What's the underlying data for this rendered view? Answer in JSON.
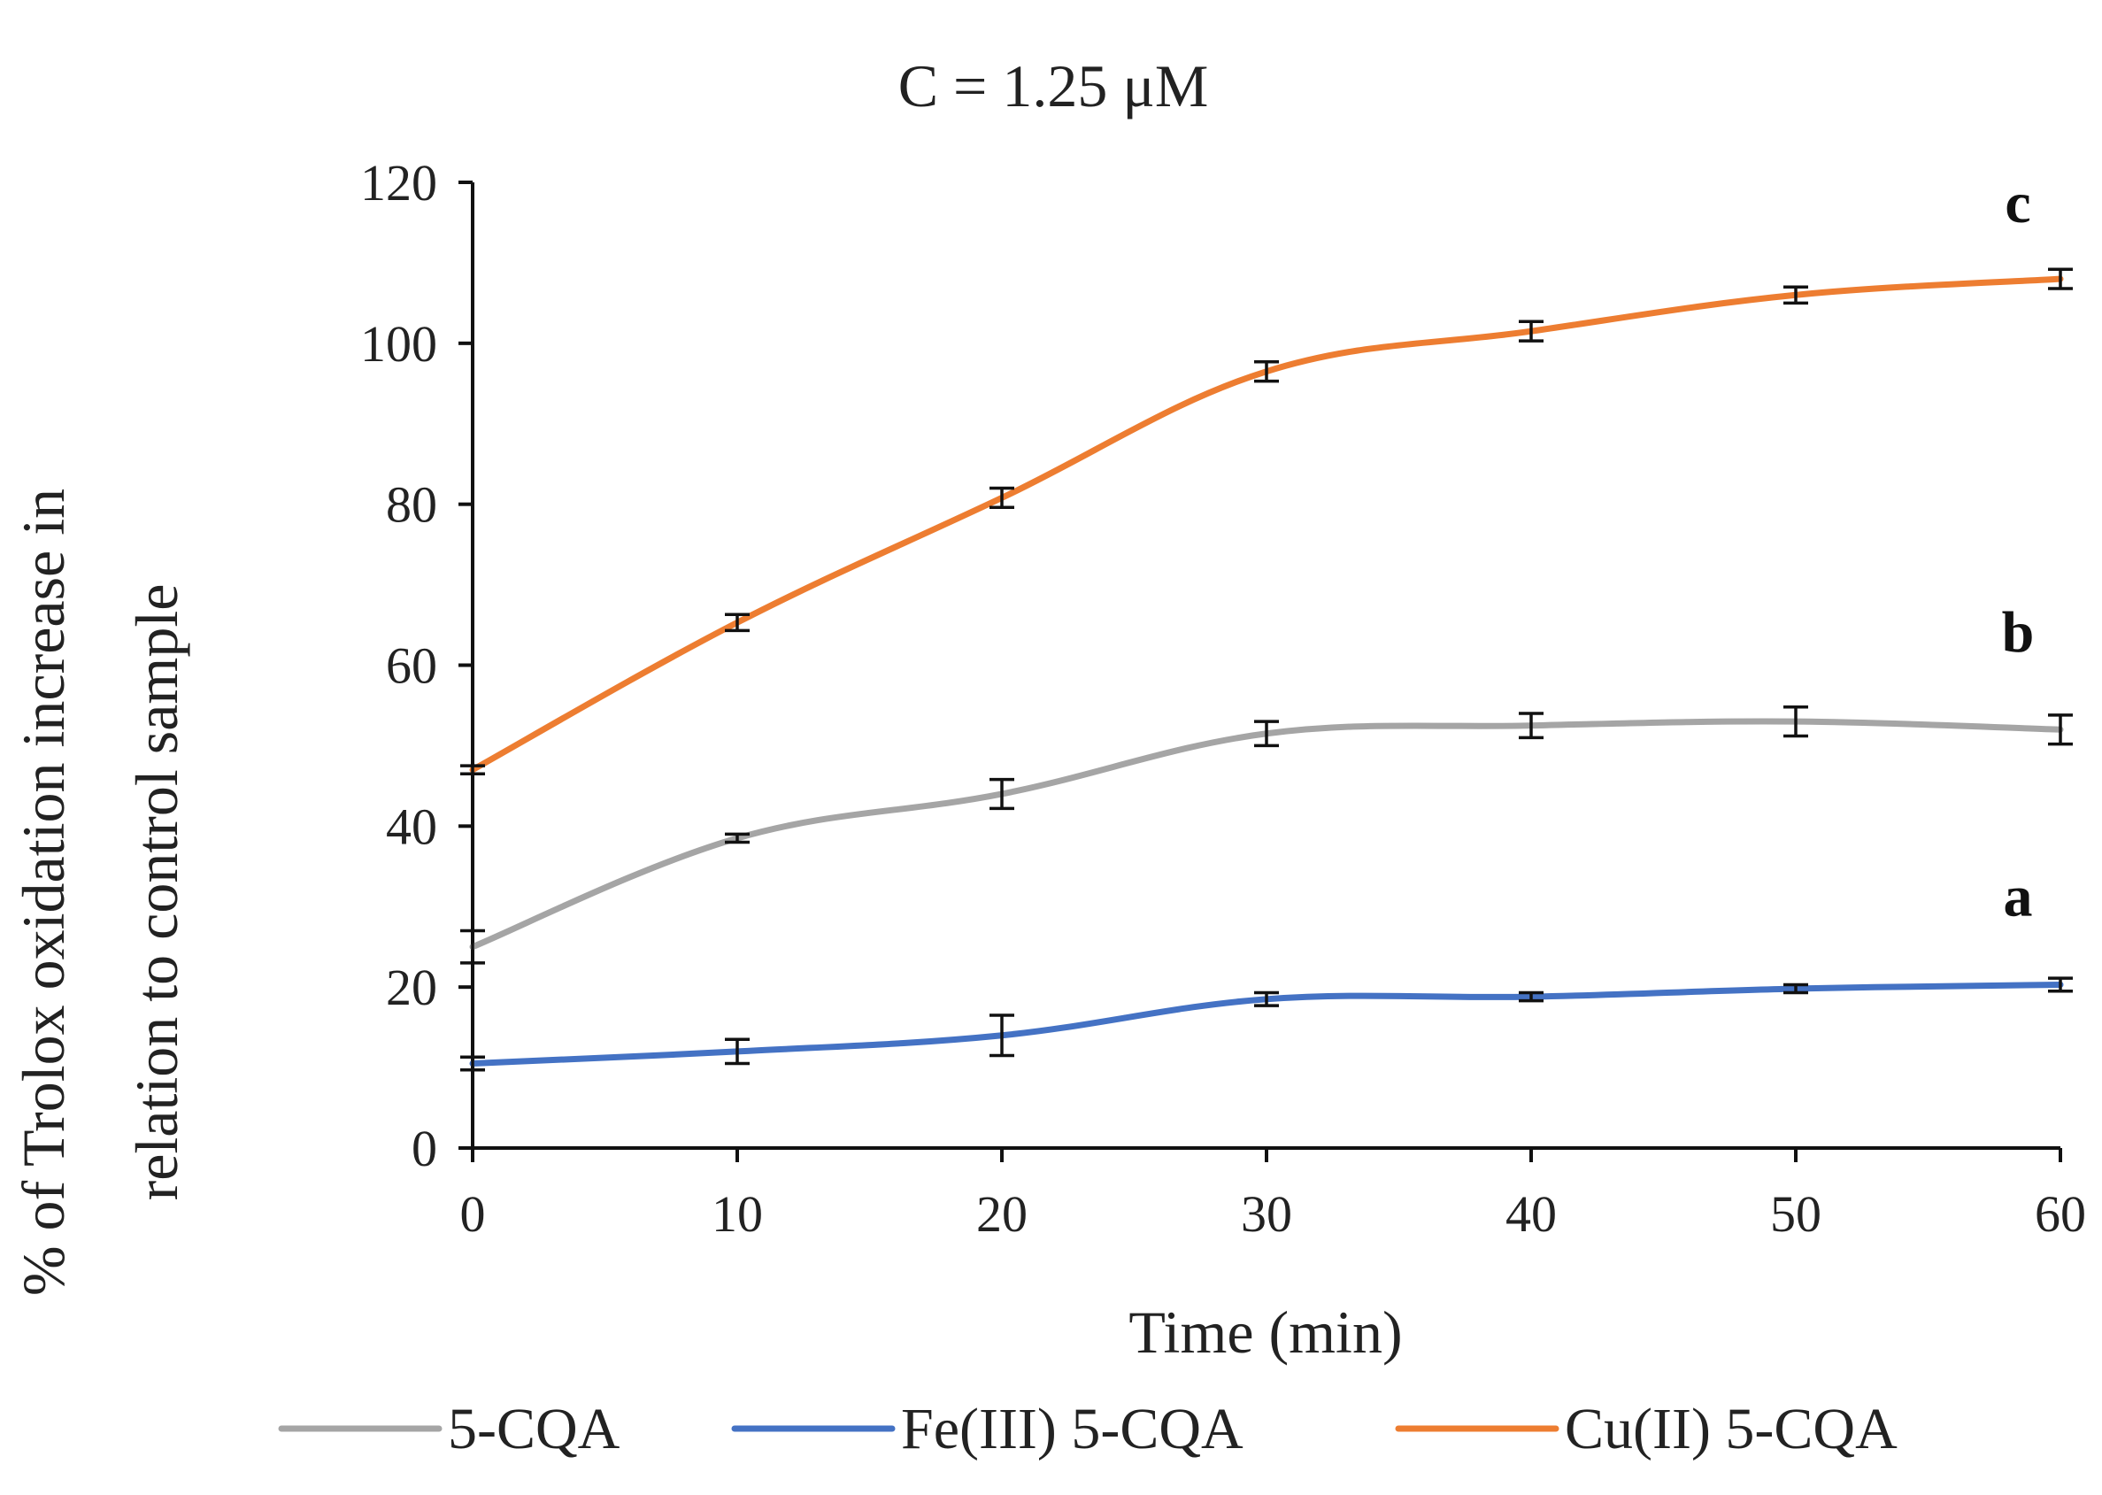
{
  "chart_data": {
    "type": "line",
    "title": "C = 1.25 μM",
    "xlabel": "Time (min)",
    "ylabel_lines": [
      "% of Trolox oxidation increase in",
      "relation to control sample"
    ],
    "x": [
      0,
      10,
      20,
      30,
      40,
      50,
      60
    ],
    "x_tick_labels": [
      "0",
      "10",
      "20",
      "30",
      "40",
      "50",
      "60"
    ],
    "y_tick_labels": [
      "0",
      "20",
      "40",
      "60",
      "80",
      "100",
      "120"
    ],
    "xlim": [
      0,
      60
    ],
    "ylim": [
      0,
      120
    ],
    "y_ticks": [
      0,
      20,
      40,
      60,
      80,
      100,
      120
    ],
    "grid": false,
    "legend_position": "bottom",
    "series": [
      {
        "name": "5-CQA",
        "color": "#a5a5a5",
        "letter": "b",
        "values": [
          25,
          38.5,
          44,
          51.5,
          52.5,
          53,
          52
        ],
        "errors": [
          2,
          0.5,
          1.8,
          1.5,
          1.5,
          1.8,
          1.8
        ]
      },
      {
        "name": "Fe(III) 5-CQA",
        "color": "#4472c4",
        "letter": "a",
        "values": [
          10.5,
          12,
          14,
          18.5,
          18.8,
          19.8,
          20.3
        ],
        "errors": [
          0.8,
          1.5,
          2.5,
          0.8,
          0.5,
          0.5,
          0.8
        ]
      },
      {
        "name": "Cu(II) 5-CQA",
        "color": "#ed7d31",
        "letter": "c",
        "values": [
          47,
          65.3,
          80.8,
          96.5,
          101.5,
          106,
          108
        ],
        "errors": [
          0.5,
          1,
          1.2,
          1.2,
          1.2,
          1,
          1.2
        ]
      }
    ]
  }
}
